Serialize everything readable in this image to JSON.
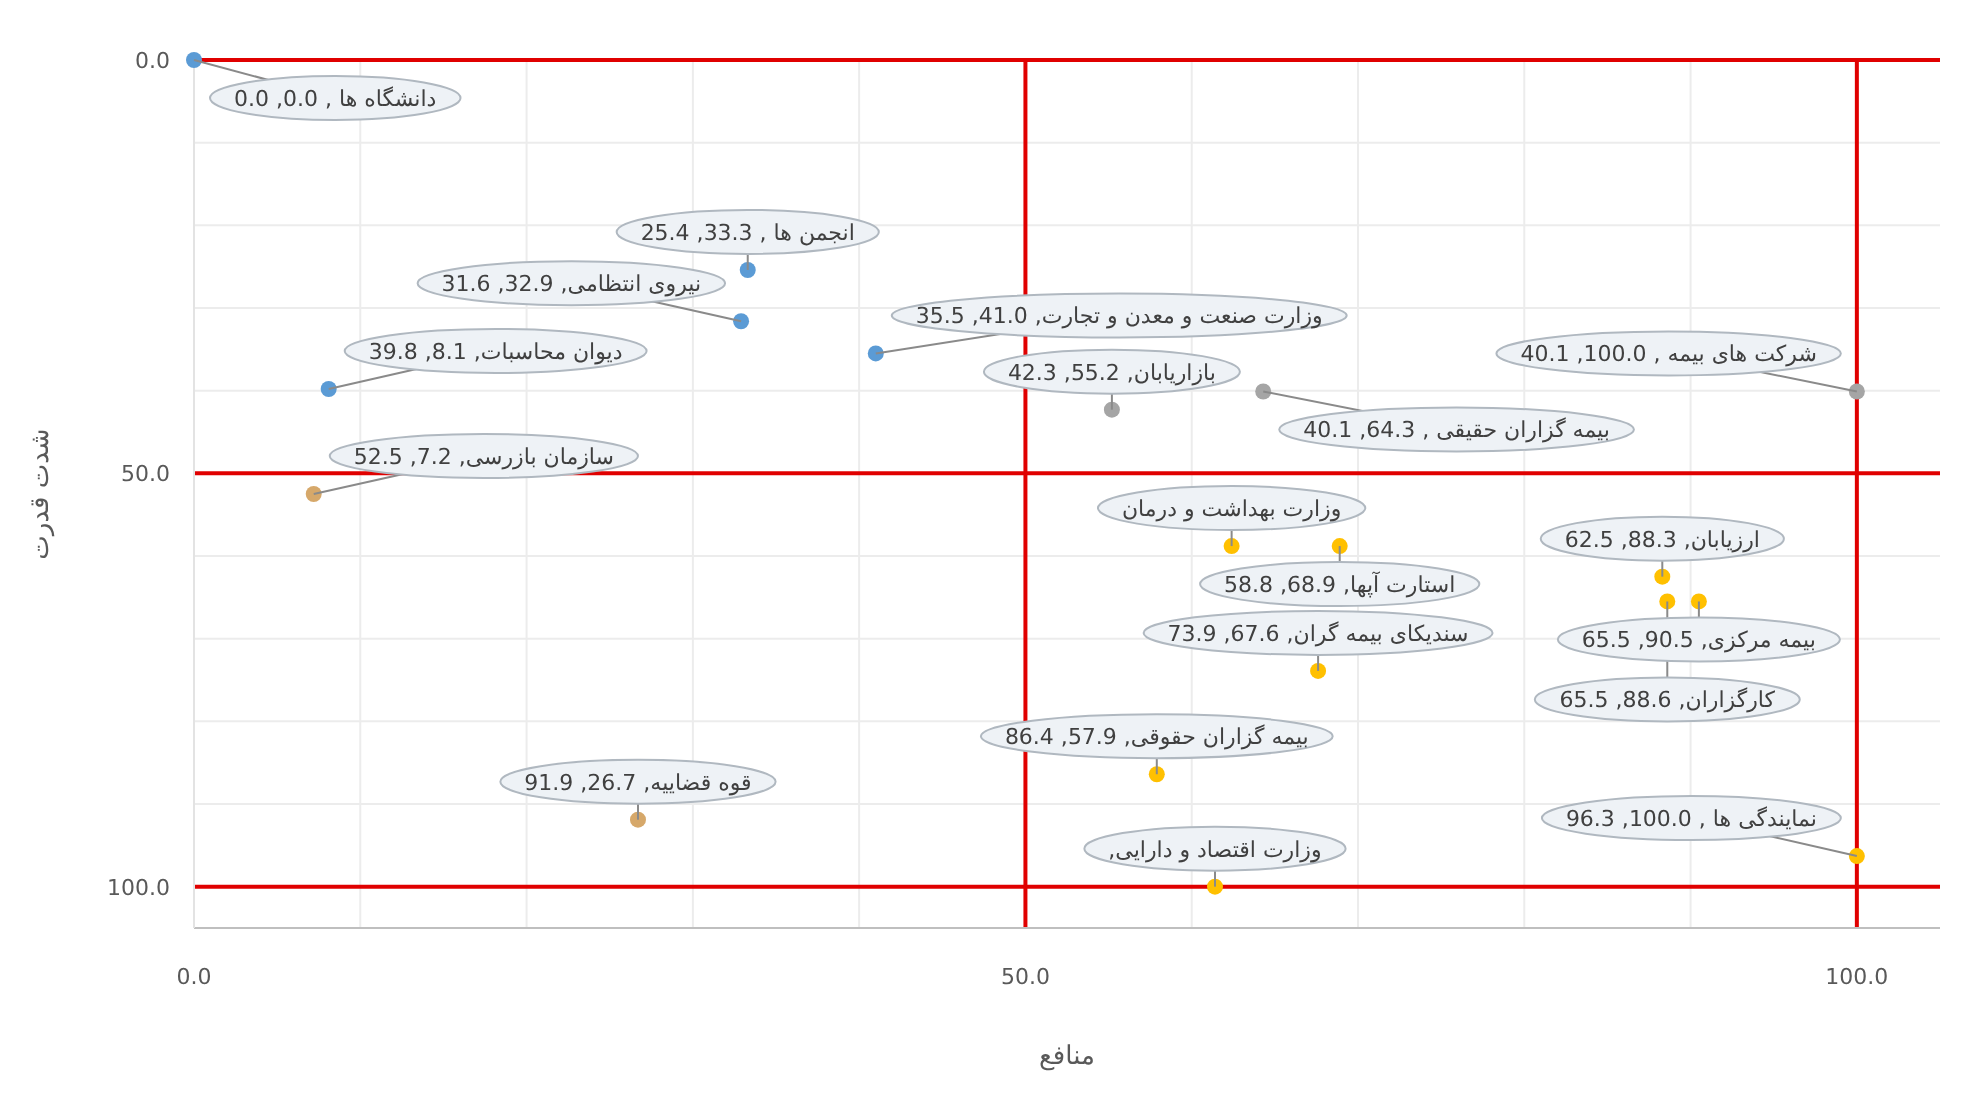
{
  "chart_data": {
    "type": "scatter",
    "xlabel": "منافع",
    "ylabel": "شدت قدرت",
    "marker": "circle",
    "grid": true,
    "xlim": [
      0,
      105
    ],
    "ylim": [
      105,
      0
    ],
    "xticks": [
      {
        "value": 0,
        "label": "0.0"
      },
      {
        "value": 50,
        "label": "50.0"
      },
      {
        "value": 100,
        "label": "100.0"
      }
    ],
    "yticks": [
      {
        "value": 0,
        "label": "0.0"
      },
      {
        "value": 50,
        "label": "50.0"
      },
      {
        "value": 100,
        "label": "100.0"
      }
    ],
    "series": [
      {
        "color": "#5b9bd5",
        "x": [
          0.0,
          33.3,
          41.0,
          8.1,
          32.9
        ],
        "values": [
          0.0,
          25.4,
          35.5,
          39.8,
          31.6
        ]
      },
      {
        "color": "#a5a5a5",
        "x": [
          55.2,
          64.3,
          100.0
        ],
        "values": [
          42.3,
          40.1,
          40.1
        ]
      },
      {
        "color": "#d6a86a",
        "x": [
          7.2,
          26.7
        ],
        "values": [
          52.5,
          91.9
        ]
      },
      {
        "color": "#ffc000",
        "x": [
          62.4,
          68.9,
          88.3,
          67.6,
          90.5,
          88.6,
          57.9,
          61.4,
          100.0
        ],
        "values": [
          58.8,
          58.8,
          62.5,
          73.9,
          65.5,
          65.5,
          86.4,
          100.0,
          96.3
        ]
      }
    ],
    "annotations": [
      {
        "text": "دانشگاه ها , 0.0, 0.0",
        "x": 0.0,
        "y": 0.0
      },
      {
        "text": "انجمن ها , 33.3, 25.4",
        "x": 33.3,
        "y": 25.4
      },
      {
        "text": "وزارت صنعت و معدن و تجارت, 41.0, 35.5",
        "x": 41.0,
        "y": 35.5
      },
      {
        "text": "دیوان محاسبات, 8.1, 39.8",
        "x": 8.1,
        "y": 39.8
      },
      {
        "text": "نیروی انتظامی, 32.9, 31.6",
        "x": 32.9,
        "y": 31.6
      },
      {
        "text": "بازاریابان, 55.2, 42.3",
        "x": 55.2,
        "y": 42.3
      },
      {
        "text": "بیمه گزاران حقیقی , 64.3, 40.1",
        "x": 64.3,
        "y": 40.1
      },
      {
        "text": "شرکت های بیمه , 100.0, 40.1",
        "x": 100.0,
        "y": 40.1
      },
      {
        "text": "سازمان بازرسی, 7.2, 52.5",
        "x": 7.2,
        "y": 52.5
      },
      {
        "text": "قوه قضاییه, 26.7, 91.9",
        "x": 26.7,
        "y": 91.9
      },
      {
        "text": "وزارت بهداشت و درمان",
        "x": 62.4,
        "y": 58.8
      },
      {
        "text": "استارت آپها, 68.9, 58.8",
        "x": 68.9,
        "y": 58.8
      },
      {
        "text": "ارزیابان, 88.3, 62.5",
        "x": 88.3,
        "y": 62.5
      },
      {
        "text": "سندیکای بیمه گران, 67.6, 73.9",
        "x": 67.6,
        "y": 73.9
      },
      {
        "text": "بیمه مرکزی, 90.5, 65.5",
        "x": 90.5,
        "y": 65.5
      },
      {
        "text": "کارگزاران, 88.6, 65.5",
        "x": 88.6,
        "y": 65.5
      },
      {
        "text": "بیمه گزاران حقوقی, 57.9, 86.4",
        "x": 57.9,
        "y": 86.4
      },
      {
        "text": "وزارت اقتصاد و دارایی,",
        "x": 61.4,
        "y": 100.0
      },
      {
        "text": "نمایندگی ها , 100.0, 96.3",
        "x": 100.0,
        "y": 96.3
      }
    ]
  }
}
